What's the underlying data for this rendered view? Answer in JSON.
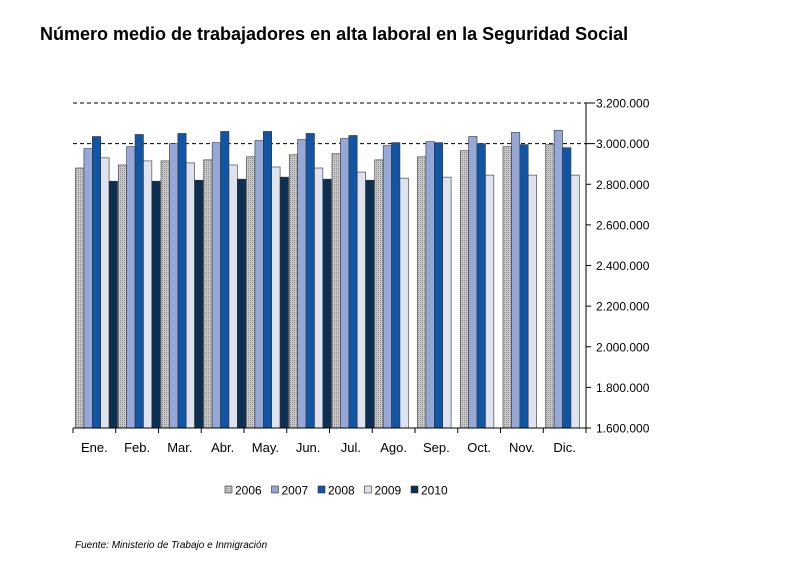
{
  "chart_data": {
    "type": "bar",
    "title": "Número medio de trabajadores en alta laboral en la Seguridad Social",
    "xlabel": "",
    "ylabel": "",
    "categories": [
      "Ene.",
      "Feb.",
      "Mar.",
      "Abr.",
      "May.",
      "Jun.",
      "Jul.",
      "Ago.",
      "Sep.",
      "Oct.",
      "Nov.",
      "Dic."
    ],
    "ylim": [
      1600000,
      3200000
    ],
    "yticks": [
      1600000,
      1800000,
      2000000,
      2200000,
      2400000,
      2600000,
      2800000,
      3000000,
      3200000
    ],
    "ytick_labels": [
      "1.600.000",
      "1.800.000",
      "2.000.000",
      "2.200.000",
      "2.400.000",
      "2.600.000",
      "2.800.000",
      "3.000.000",
      "3.200.000"
    ],
    "y_axis_position": "right",
    "gridlines": "dashed at 3.200.000 and 3.000.000",
    "legend_position": "bottom",
    "series": [
      {
        "name": "2006",
        "color": "#c8c8c8",
        "values": [
          2880000,
          2895000,
          2915000,
          2920000,
          2935000,
          2945000,
          2950000,
          2920000,
          2935000,
          2965000,
          2985000,
          2995000
        ]
      },
      {
        "name": "2007",
        "color": "#96a8d8",
        "values": [
          2975000,
          2985000,
          3000000,
          3005000,
          3015000,
          3020000,
          3025000,
          2990000,
          3010000,
          3035000,
          3055000,
          3065000
        ]
      },
      {
        "name": "2008",
        "color": "#1155a5",
        "values": [
          3035000,
          3045000,
          3050000,
          3060000,
          3060000,
          3050000,
          3040000,
          3005000,
          3005000,
          3000000,
          2995000,
          2980000
        ]
      },
      {
        "name": "2009",
        "color": "#dfe2ef",
        "values": [
          2930000,
          2915000,
          2905000,
          2895000,
          2885000,
          2880000,
          2860000,
          2830000,
          2835000,
          2845000,
          2845000,
          2845000
        ]
      },
      {
        "name": "2010",
        "color": "#0d2f52",
        "values": [
          2815000,
          2815000,
          2820000,
          2825000,
          2835000,
          2825000,
          2820000,
          null,
          null,
          null,
          null,
          null
        ]
      }
    ]
  },
  "source": "Fuente: Ministerio de Trabajo e Inmigración"
}
